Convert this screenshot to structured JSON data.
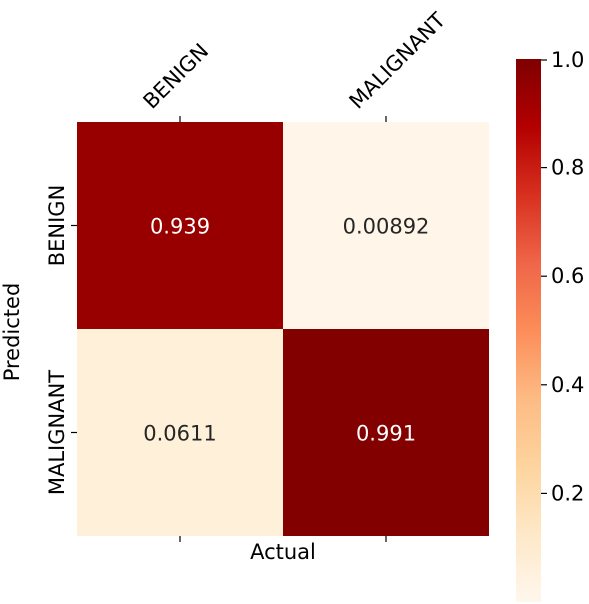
{
  "chart_data": {
    "type": "heatmap",
    "title": "",
    "xlabel": "Actual",
    "ylabel": "Predicted",
    "x_categories": [
      "BENIGN",
      "MALIGNANT"
    ],
    "y_categories": [
      "BENIGN",
      "MALIGNANT"
    ],
    "values": [
      [
        0.939,
        0.00892
      ],
      [
        0.0611,
        0.991
      ]
    ],
    "cell_labels": [
      [
        "0.939",
        "0.00892"
      ],
      [
        "0.0611",
        "0.991"
      ]
    ],
    "colorbar": {
      "min": 0.0,
      "max": 1.0,
      "ticks": [
        {
          "value": 0.2,
          "label": "0.2"
        },
        {
          "value": 0.4,
          "label": "0.4"
        },
        {
          "value": 0.6,
          "label": "0.6"
        },
        {
          "value": 0.8,
          "label": "0.8"
        },
        {
          "value": 1.0,
          "label": "1.0"
        }
      ]
    },
    "colormap": "OrRd-like",
    "colors": {
      "low": "#fff7ec",
      "high": "#7f0000",
      "text_dark": "#262626",
      "text_light": "#ffffff"
    },
    "grid": false,
    "legend": "colorbar-right"
  }
}
